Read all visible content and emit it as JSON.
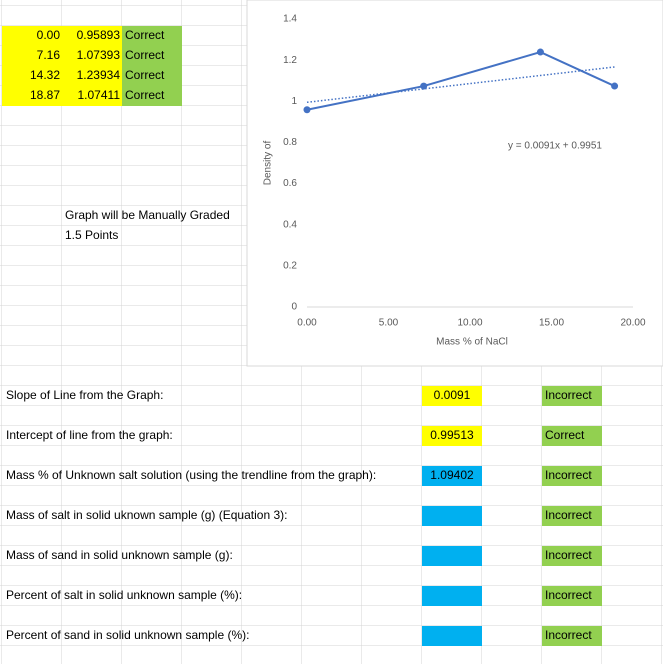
{
  "results_table": {
    "rows": [
      [
        "0.00",
        "0.95893",
        "Correct"
      ],
      [
        "7.16",
        "1.07393",
        "Correct"
      ],
      [
        "14.32",
        "1.23934",
        "Correct"
      ],
      [
        "18.87",
        "1.07411",
        "Correct"
      ]
    ]
  },
  "notes": [
    "Graph will be Manually Graded",
    "1.5 Points"
  ],
  "questions": [
    {
      "label": "Slope of Line from the Graph:",
      "answer": "0.0091",
      "answer_fill": "#ffff00",
      "status": "Incorrect"
    },
    {
      "label": "Intercept of line from the graph:",
      "answer": "0.99513",
      "answer_fill": "#ffff00",
      "status": "Correct"
    },
    {
      "label": "Mass % of Unknown salt solution (using the trendline from the graph):",
      "answer": "1.09402",
      "answer_fill": "#00b0f0",
      "status": "Incorrect"
    },
    {
      "label": "Mass of salt in solid uknown sample (g) (Equation 3):",
      "answer_fill": "#00b0f0",
      "status": "Incorrect"
    },
    {
      "label": "Mass of sand in solid unknown sample (g):",
      "answer_fill": "#00b0f0",
      "status": "Incorrect"
    },
    {
      "label": "Percent of salt in solid unknown sample (%):",
      "answer_fill": "#00b0f0",
      "status": "Incorrect"
    },
    {
      "label": "Percent of sand in solid unknown sample (%):",
      "answer_fill": "#00b0f0",
      "status": "Incorrect"
    }
  ],
  "chart_data": {
    "type": "line",
    "x_label": "Mass % of NaCl",
    "y_label": "Density of",
    "x": [
      0,
      7.16,
      14.32,
      18.87
    ],
    "values": [
      0.95893,
      1.07393,
      1.23934,
      1.07411
    ],
    "color": "#4472c4",
    "xlim": [
      0,
      20
    ],
    "xticks": [
      {
        "value": 0,
        "label": "0.00"
      },
      {
        "value": 5,
        "label": "5.00"
      },
      {
        "value": 10,
        "label": "10.00"
      },
      {
        "value": 15,
        "label": "15.00"
      },
      {
        "value": 20,
        "label": "20.00"
      }
    ],
    "ylim": [
      0,
      1.4
    ],
    "yticks": [
      0,
      0.2,
      0.4,
      0.6,
      0.8,
      1,
      1.2,
      1.4
    ],
    "trendline": {
      "slope": 0.0091,
      "intercept": 0.9951,
      "label": "y = 0.0091x + 0.9951"
    }
  }
}
